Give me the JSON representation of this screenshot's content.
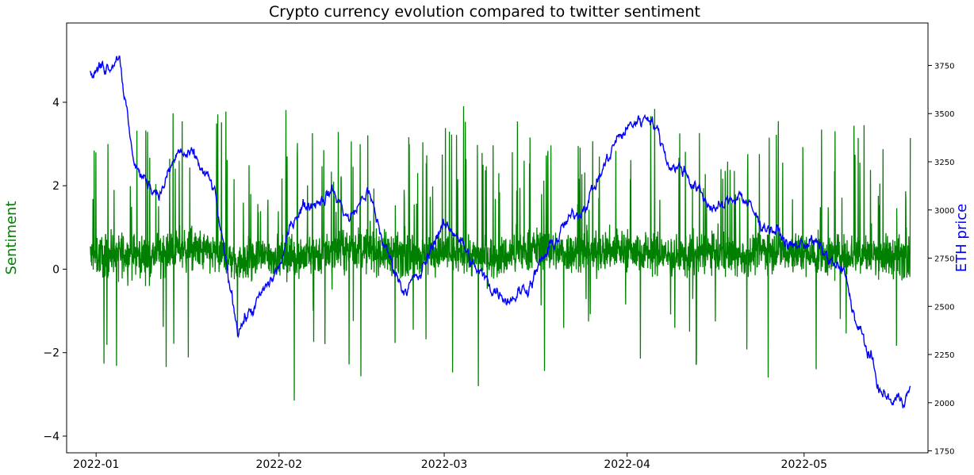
{
  "chart_data": {
    "type": "line",
    "title": "Crypto currency evolution compared to twitter sentiment",
    "xlabel": "",
    "x_ticks": [
      "2022-01",
      "2022-02",
      "2022-03",
      "2022-04",
      "2022-05"
    ],
    "x_range": [
      "2021-12-27",
      "2022-05-22"
    ],
    "y_left": {
      "label": "Sentiment",
      "range": [
        -4.4,
        5.9
      ],
      "ticks": [
        -4,
        -2,
        0,
        2,
        4
      ],
      "tick_labels": [
        "−4",
        "−2",
        "0",
        "2",
        "4"
      ],
      "color": "#008000"
    },
    "y_right": {
      "label": "ETH price",
      "range": [
        1740,
        3970
      ],
      "ticks": [
        1750,
        2000,
        2250,
        2500,
        2750,
        3000,
        3250,
        3500,
        3750
      ],
      "tick_labels": [
        "1750",
        "2000",
        "2250",
        "2500",
        "2750",
        "3000",
        "3250",
        "3500",
        "3750"
      ],
      "color": "#0000ff"
    },
    "series": [
      {
        "axis": "left",
        "color": "#008000",
        "x": [
          "2021-12-31",
          "2022-01-05",
          "2022-01-10",
          "2022-01-15",
          "2022-01-20",
          "2022-01-25",
          "2022-01-30",
          "2022-02-04",
          "2022-02-09",
          "2022-02-14",
          "2022-02-19",
          "2022-02-24",
          "2022-03-01",
          "2022-03-06",
          "2022-03-11",
          "2022-03-16",
          "2022-03-21",
          "2022-03-26",
          "2022-03-31",
          "2022-04-05",
          "2022-04-10",
          "2022-04-15",
          "2022-04-20",
          "2022-04-25",
          "2022-04-30",
          "2022-05-05",
          "2022-05-10",
          "2022-05-15",
          "2022-05-19"
        ],
        "values": [
          0.3,
          0.4,
          0.3,
          0.5,
          0.4,
          0.2,
          0.3,
          0.3,
          0.4,
          0.5,
          0.4,
          0.3,
          0.4,
          0.3,
          0.3,
          0.5,
          0.4,
          0.4,
          0.5,
          0.4,
          0.3,
          0.4,
          0.3,
          0.5,
          0.4,
          0.3,
          0.4,
          0.3,
          0.3
        ]
      },
      {
        "axis": "right",
        "color": "#0000ff",
        "x": [
          "2021-12-31",
          "2022-01-03",
          "2022-01-05",
          "2022-01-07",
          "2022-01-09",
          "2022-01-12",
          "2022-01-15",
          "2022-01-18",
          "2022-01-21",
          "2022-01-23",
          "2022-01-25",
          "2022-01-28",
          "2022-02-01",
          "2022-02-04",
          "2022-02-07",
          "2022-02-10",
          "2022-02-13",
          "2022-02-16",
          "2022-02-19",
          "2022-02-22",
          "2022-02-25",
          "2022-02-28",
          "2022-03-03",
          "2022-03-06",
          "2022-03-09",
          "2022-03-12",
          "2022-03-15",
          "2022-03-18",
          "2022-03-21",
          "2022-03-24",
          "2022-03-27",
          "2022-03-30",
          "2022-04-02",
          "2022-04-05",
          "2022-04-08",
          "2022-04-11",
          "2022-04-14",
          "2022-04-17",
          "2022-04-20",
          "2022-04-23",
          "2022-04-26",
          "2022-04-29",
          "2022-05-02",
          "2022-05-05",
          "2022-05-08",
          "2022-05-10",
          "2022-05-12",
          "2022-05-14",
          "2022-05-16",
          "2022-05-19"
        ],
        "values": [
          3700,
          3760,
          3820,
          3300,
          3150,
          3100,
          3300,
          3250,
          3100,
          2700,
          2400,
          2500,
          2700,
          3000,
          3050,
          3100,
          2950,
          3100,
          2800,
          2600,
          2650,
          2900,
          2900,
          2700,
          2600,
          2550,
          2600,
          2750,
          2900,
          3000,
          3150,
          3350,
          3450,
          3500,
          3250,
          3200,
          3050,
          3000,
          3100,
          2950,
          2900,
          2800,
          2850,
          2750,
          2650,
          2400,
          2250,
          2050,
          2000,
          2060
        ]
      }
    ]
  }
}
